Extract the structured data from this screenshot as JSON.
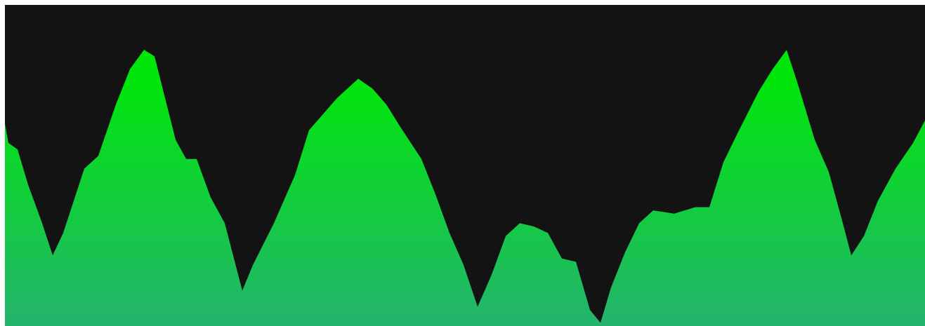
{
  "chart_data": {
    "type": "area",
    "x": [
      0,
      5,
      18,
      33,
      53,
      68,
      83,
      113,
      133,
      158,
      178,
      198,
      213,
      228,
      243,
      258,
      273,
      293,
      313,
      338,
      353,
      383,
      413,
      433,
      453,
      473,
      503,
      523,
      543,
      563,
      593,
      613,
      633,
      653,
      673,
      693,
      713,
      733,
      753,
      773,
      793,
      813,
      833,
      848,
      863,
      883,
      903,
      923,
      953,
      983,
      1003,
      1023,
      1043,
      1073,
      1093,
      1113,
      1128,
      1153,
      1173,
      1193,
      1205,
      1223,
      1243,
      1268,
      1293,
      1310
    ],
    "values": [
      63,
      57,
      55,
      44,
      32,
      22,
      29,
      49,
      53,
      69,
      80,
      86,
      84,
      71,
      58,
      52,
      52,
      40,
      32,
      11,
      19,
      32,
      47,
      61,
      66,
      71,
      77,
      74,
      69,
      62,
      52,
      41,
      29,
      19,
      6,
      16,
      28,
      32,
      31,
      29,
      21,
      20,
      5,
      1,
      12,
      23,
      32,
      36,
      35,
      37,
      37,
      51,
      60,
      73,
      80,
      86,
      76,
      58,
      48,
      32,
      22,
      28,
      39,
      49,
      57,
      64
    ],
    "xlim": [
      0,
      1310
    ],
    "ylim": [
      0,
      100
    ],
    "background": "#131313",
    "color_top": "#00e60a",
    "color_bottom": "#24b46e"
  }
}
